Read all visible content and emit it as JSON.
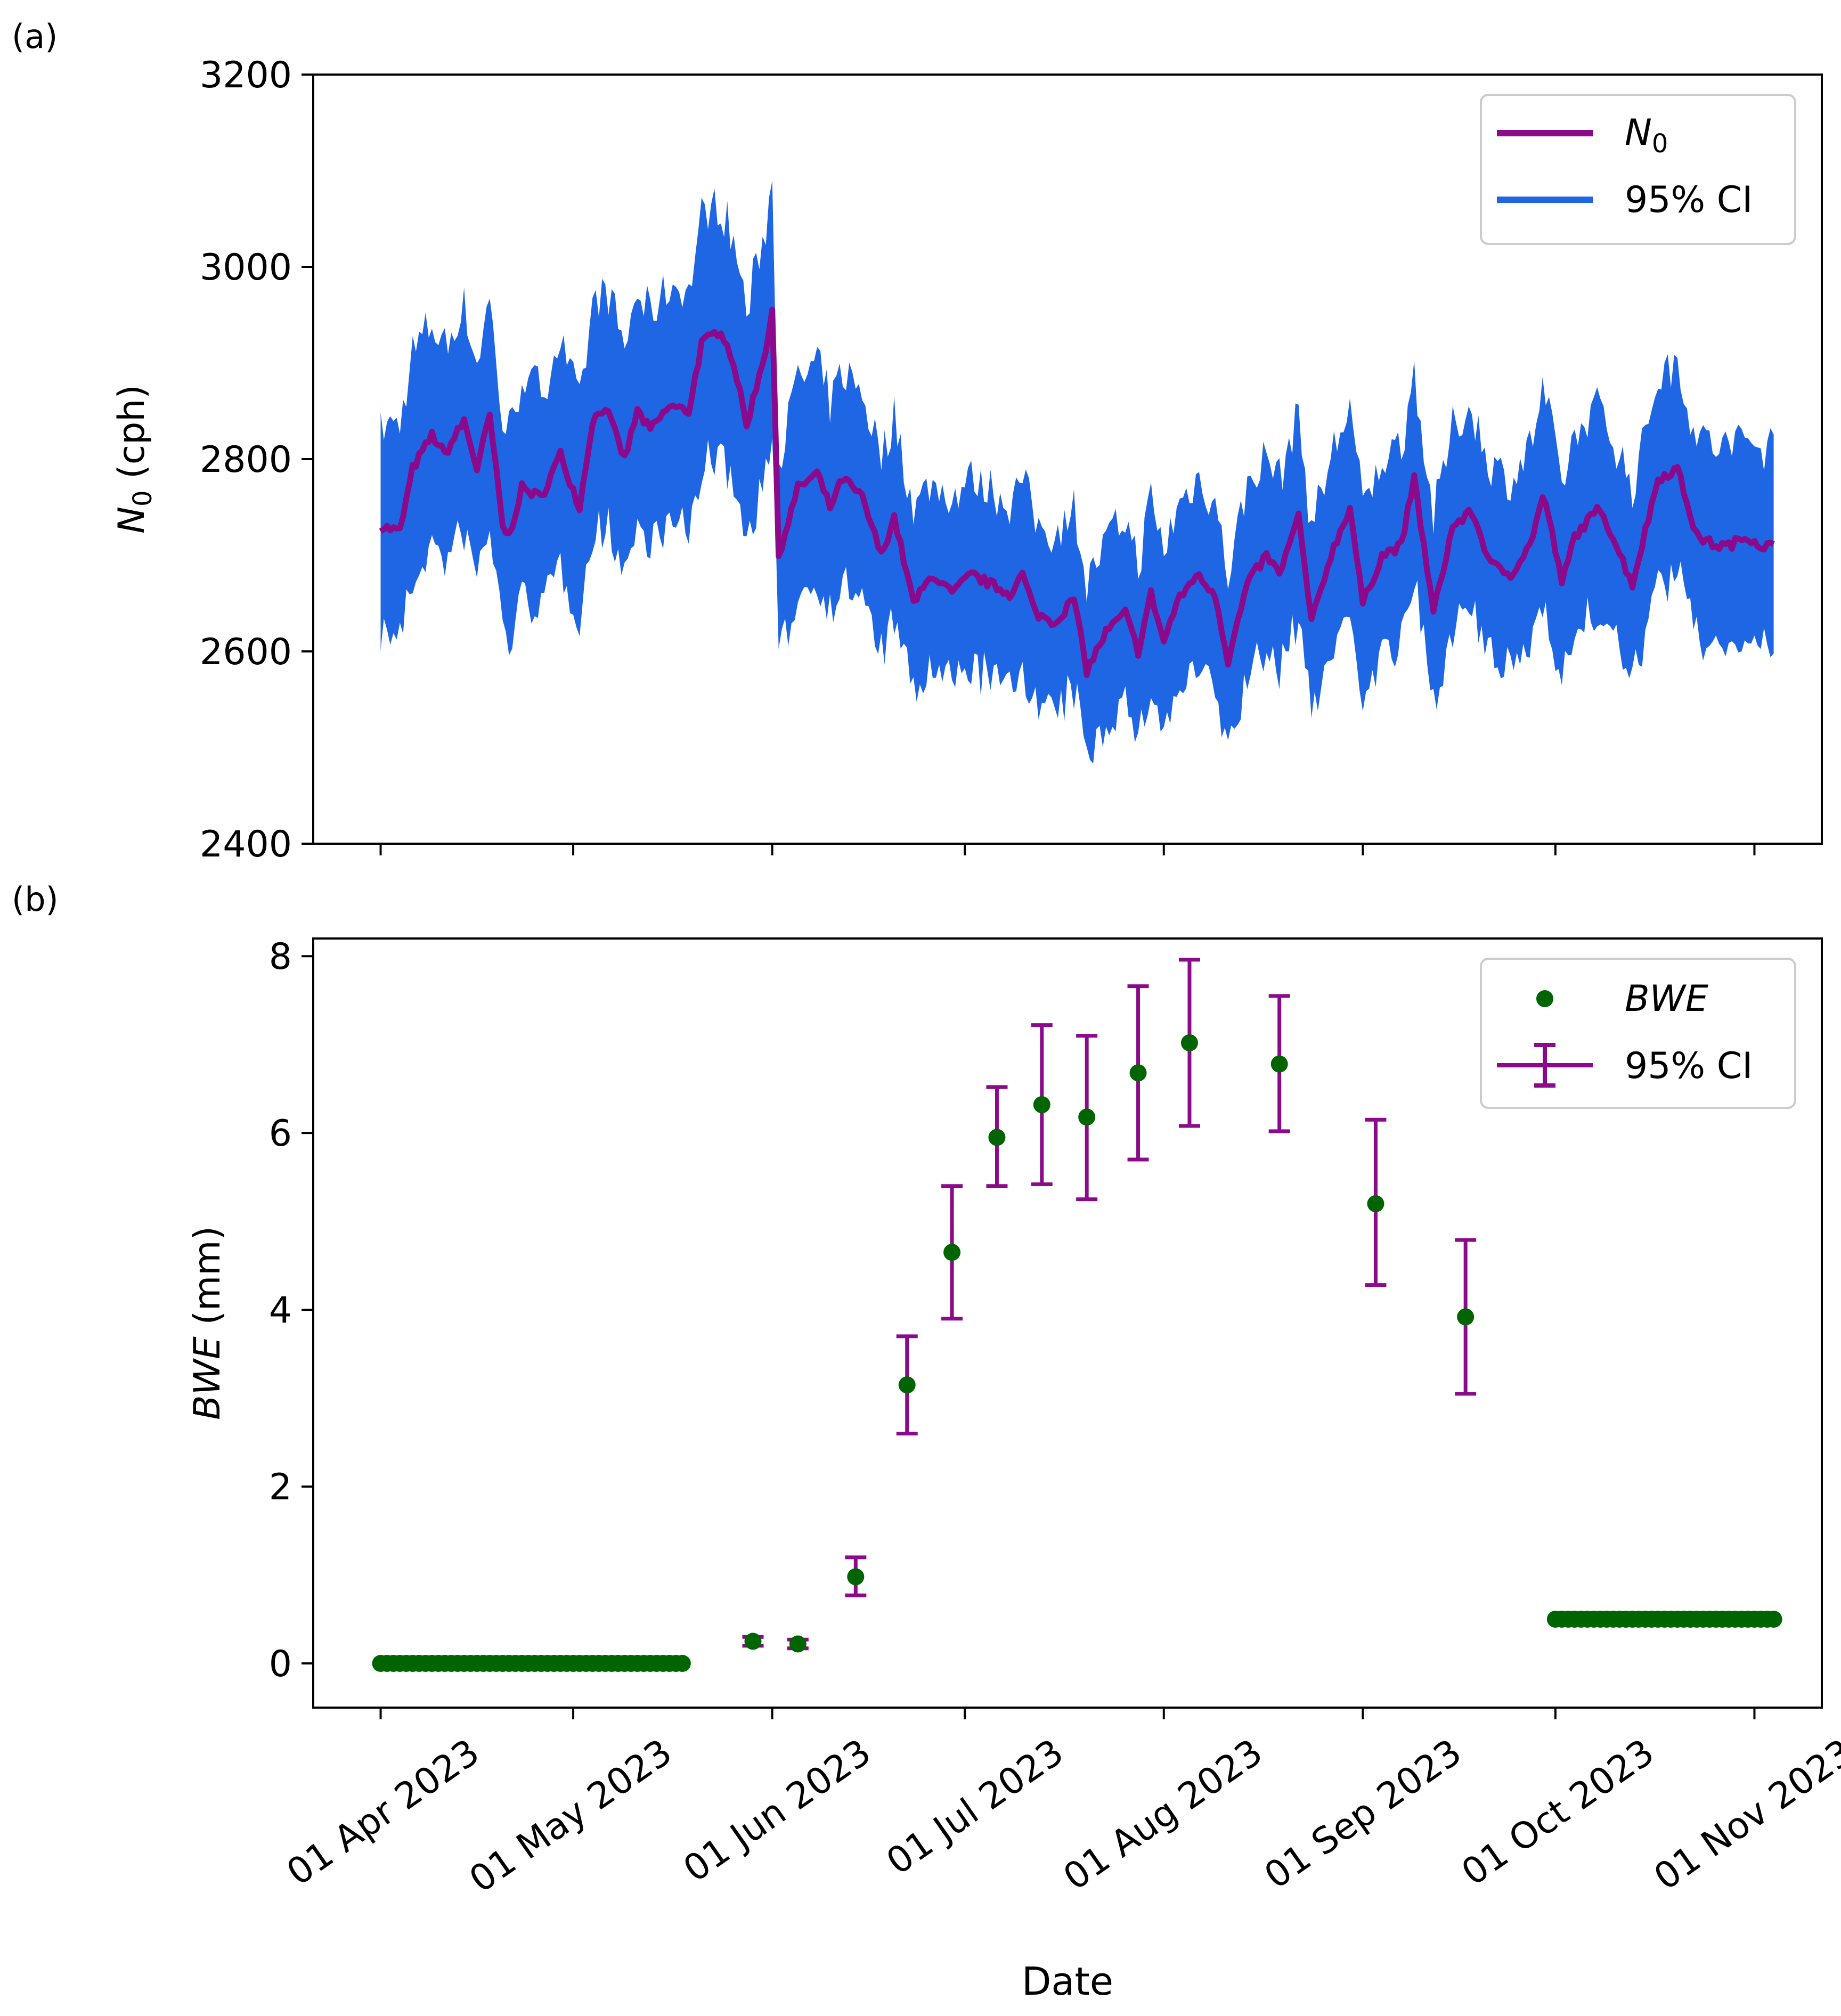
{
  "xaxis": {
    "label": "Date",
    "tick_labels": [
      "01 Apr 2023",
      "01 May 2023",
      "01 Jun 2023",
      "01 Jul 2023",
      "01 Aug 2023",
      "01 Sep 2023",
      "01 Oct 2023",
      "01 Nov 2023"
    ],
    "tick_days": [
      0,
      30,
      61,
      91,
      122,
      153,
      183,
      214
    ],
    "range_days": [
      -10.5,
      224.5
    ]
  },
  "colors": {
    "n0": "#8b0a8b",
    "ci_band": "#1f66e5",
    "bwe": "#006400",
    "errbar": "#8b0a8b"
  },
  "chart_data": [
    {
      "type": "line",
      "panel_label": "(a)",
      "ylabel_sym": "N",
      "ylabel_sub": "0",
      "ylabel_unit": " (cph)",
      "ylim": [
        2400,
        3200
      ],
      "yticks": [
        2400,
        2600,
        2800,
        3000,
        3200
      ],
      "legend": {
        "placement": "upper-right",
        "line_sym": "N",
        "line_sub": "0",
        "band": "95% CI"
      },
      "keypoints": {
        "days": [
          0,
          3,
          5,
          8,
          10,
          13,
          15,
          17,
          19,
          20,
          22,
          25,
          28,
          31,
          33,
          35,
          38,
          40,
          42,
          45,
          48,
          50,
          53,
          55,
          57,
          60,
          61,
          62,
          65,
          68,
          70,
          72,
          75,
          78,
          80,
          83,
          86,
          89,
          92,
          95,
          98,
          100,
          102,
          105,
          108,
          110,
          113,
          116,
          118,
          120,
          122,
          124,
          127,
          130,
          132,
          135,
          138,
          140,
          143,
          145,
          148,
          151,
          153,
          156,
          159,
          161,
          164,
          167,
          170,
          173,
          176,
          179,
          181,
          182,
          184,
          186,
          190,
          195,
          199,
          202,
          205,
          208,
          210,
          213,
          215,
          217
        ],
        "n0": [
          2730,
          2725,
          2790,
          2825,
          2805,
          2840,
          2790,
          2845,
          2730,
          2720,
          2770,
          2760,
          2805,
          2750,
          2840,
          2855,
          2800,
          2850,
          2830,
          2855,
          2850,
          2920,
          2935,
          2900,
          2835,
          2915,
          2955,
          2700,
          2770,
          2785,
          2750,
          2780,
          2760,
          2700,
          2740,
          2650,
          2680,
          2660,
          2680,
          2670,
          2660,
          2680,
          2640,
          2630,
          2655,
          2580,
          2620,
          2640,
          2600,
          2660,
          2610,
          2650,
          2680,
          2660,
          2590,
          2670,
          2700,
          2680,
          2740,
          2630,
          2700,
          2750,
          2650,
          2700,
          2710,
          2780,
          2640,
          2730,
          2745,
          2690,
          2680,
          2710,
          2760,
          2740,
          2670,
          2720,
          2750,
          2670,
          2780,
          2790,
          2720,
          2710,
          2710,
          2720,
          2710,
          2710
        ],
        "halfwidth": [
          105,
          110,
          120,
          115,
          112,
          118,
          110,
          120,
          105,
          110,
          115,
          112,
          118,
          110,
          120,
          122,
          116,
          122,
          118,
          125,
          125,
          130,
          132,
          128,
          118,
          130,
          135,
          105,
          110,
          112,
          108,
          110,
          108,
          102,
          106,
          96,
          98,
          96,
          98,
          98,
          97,
          98,
          95,
          94,
          96,
          90,
          94,
          95,
          92,
          98,
          94,
          96,
          100,
          98,
          92,
          100,
          102,
          100,
          105,
          96,
          102,
          108,
          97,
          102,
          104,
          110,
          96,
          104,
          106,
          100,
          99,
          102,
          108,
          105,
          99,
          104,
          106,
          100,
          108,
          110,
          104,
          103,
          103,
          104,
          103,
          103
        ]
      }
    },
    {
      "type": "scatter",
      "panel_label": "(b)",
      "ylabel_sym": "BWE",
      "ylabel_unit": " (mm)",
      "ylim": [
        -0.5,
        8.2
      ],
      "yticks": [
        0,
        2,
        4,
        6,
        8
      ],
      "legend": {
        "placement": "upper-right",
        "points": "BWE",
        "errorbar": "95% CI"
      },
      "flat_segments": [
        {
          "start_day": 0,
          "end_day": 47,
          "value": 0.0
        },
        {
          "start_day": 183,
          "end_day": 217,
          "value": 0.5
        }
      ],
      "points": [
        {
          "day": 58,
          "y": 0.25,
          "lo": 0.2,
          "hi": 0.3
        },
        {
          "day": 65,
          "y": 0.22,
          "lo": 0.17,
          "hi": 0.27
        },
        {
          "day": 74,
          "y": 0.98,
          "lo": 0.77,
          "hi": 1.2
        },
        {
          "day": 82,
          "y": 3.15,
          "lo": 2.6,
          "hi": 3.7
        },
        {
          "day": 89,
          "y": 4.65,
          "lo": 3.9,
          "hi": 5.4
        },
        {
          "day": 96,
          "y": 5.95,
          "lo": 5.4,
          "hi": 6.52
        },
        {
          "day": 103,
          "y": 6.32,
          "lo": 5.42,
          "hi": 7.22
        },
        {
          "day": 110,
          "y": 6.18,
          "lo": 5.25,
          "hi": 7.1
        },
        {
          "day": 118,
          "y": 6.68,
          "lo": 5.7,
          "hi": 7.66
        },
        {
          "day": 126,
          "y": 7.02,
          "lo": 6.08,
          "hi": 7.96
        },
        {
          "day": 140,
          "y": 6.78,
          "lo": 6.02,
          "hi": 7.55
        },
        {
          "day": 155,
          "y": 5.2,
          "lo": 4.28,
          "hi": 6.15
        },
        {
          "day": 169,
          "y": 3.92,
          "lo": 3.05,
          "hi": 4.79
        }
      ]
    }
  ]
}
